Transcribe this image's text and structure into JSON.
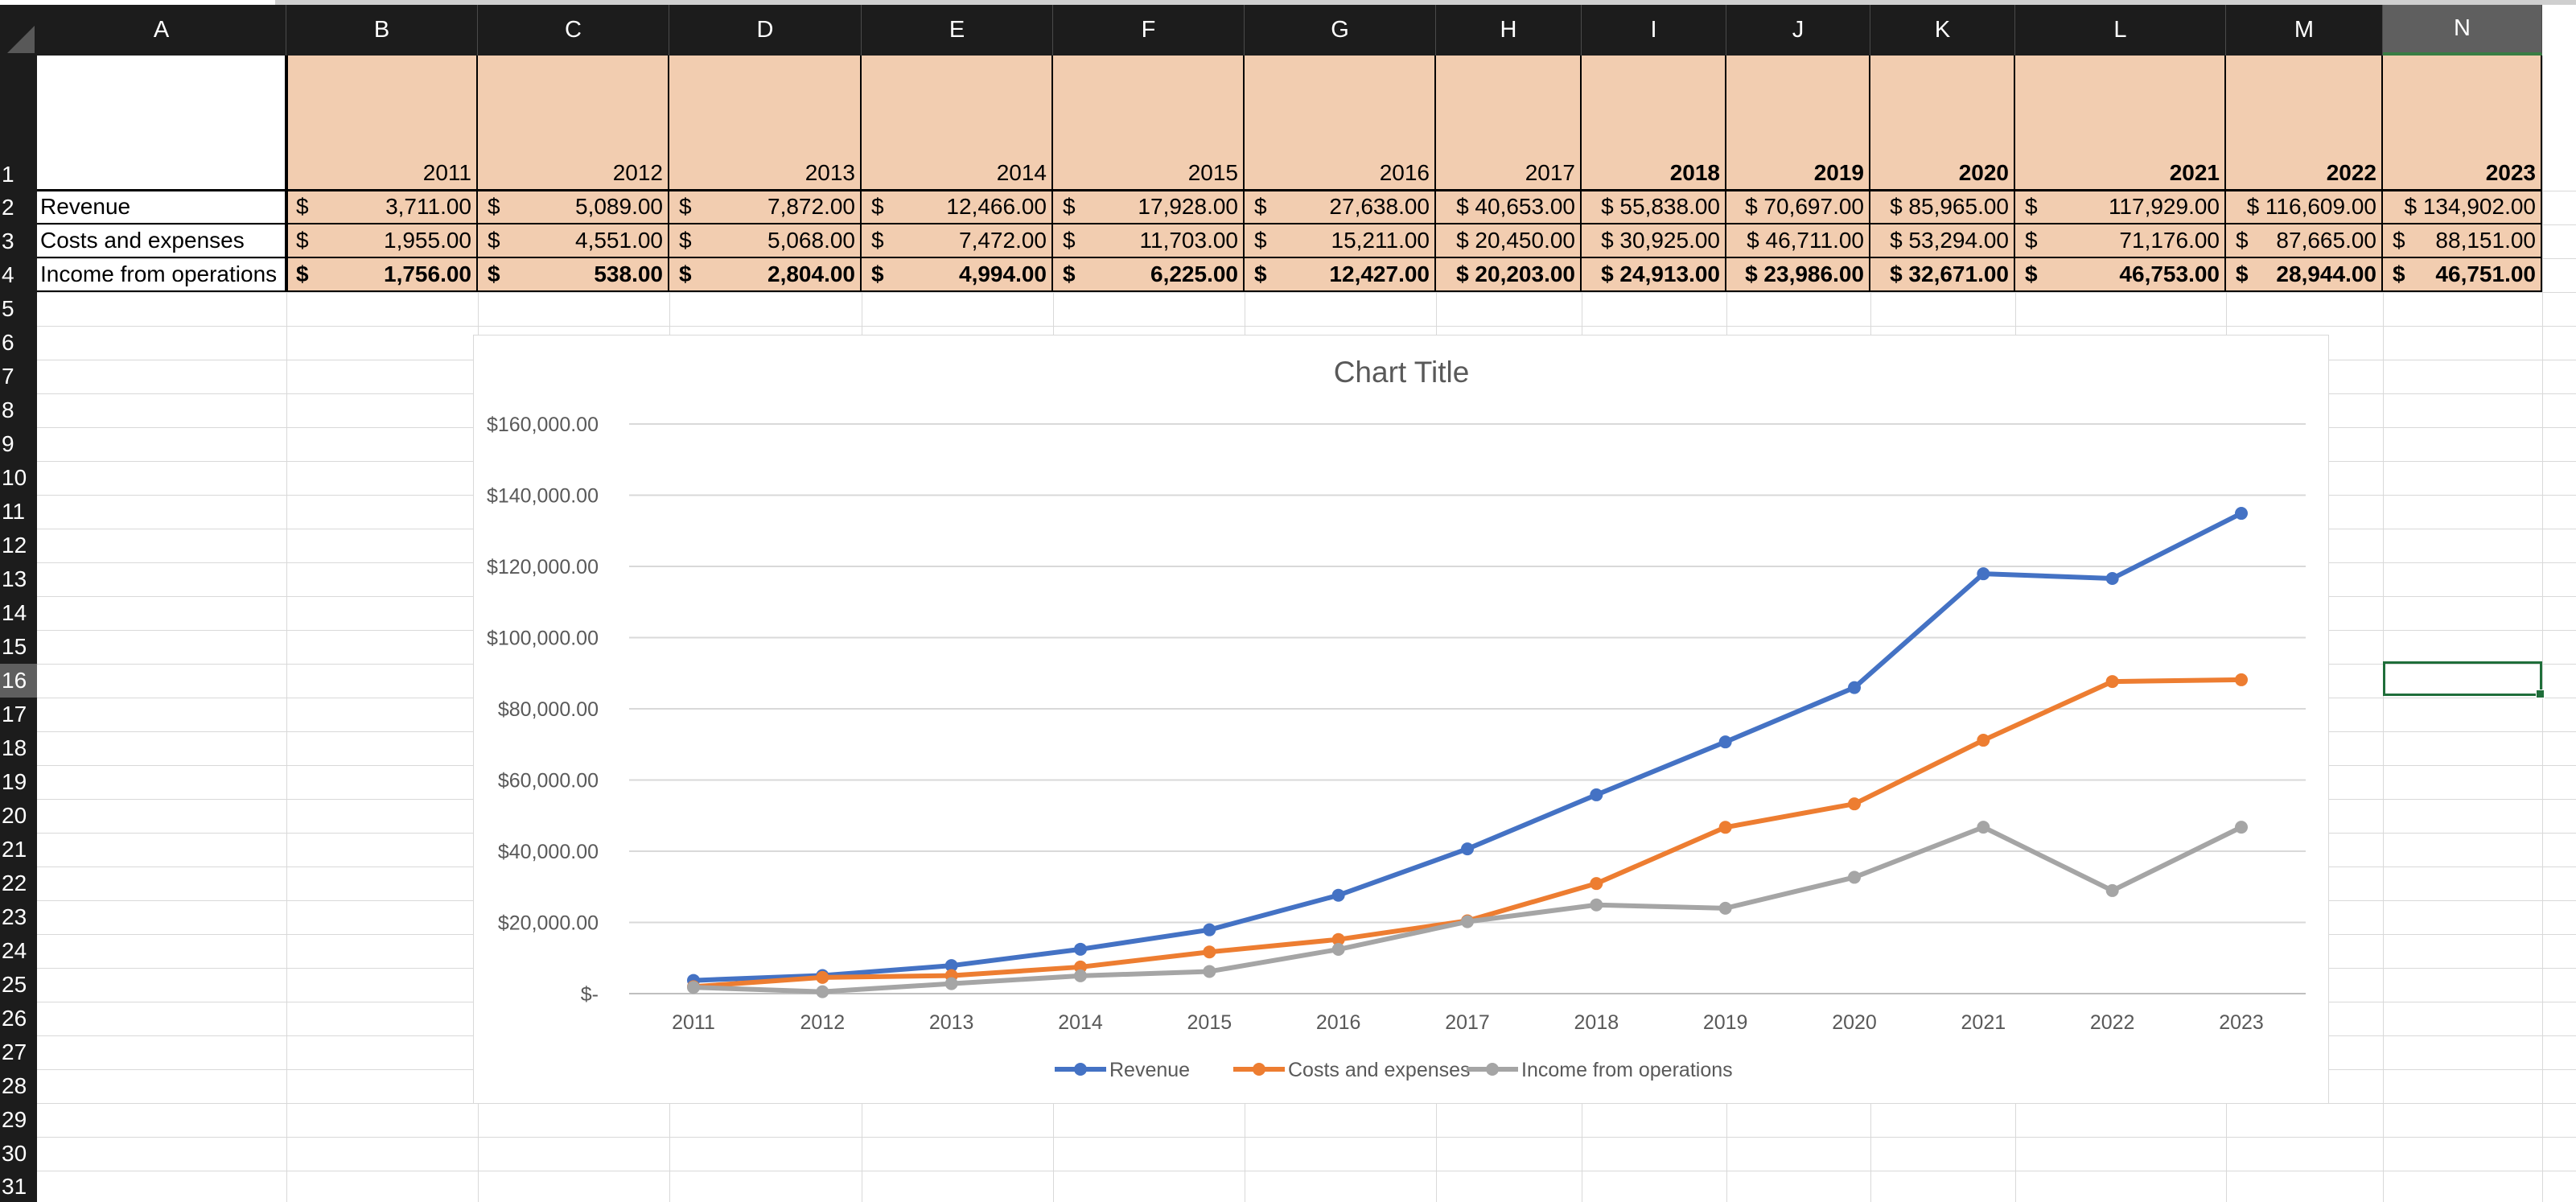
{
  "columns": [
    "A",
    "B",
    "C",
    "D",
    "E",
    "F",
    "G",
    "H",
    "I",
    "J",
    "K",
    "L",
    "M",
    "N"
  ],
  "selected_column": "N",
  "rows": [
    "1",
    "2",
    "3",
    "4",
    "5",
    "6",
    "7",
    "8",
    "9",
    "10",
    "11",
    "12",
    "13",
    "14",
    "15",
    "16",
    "17",
    "18",
    "19",
    "20",
    "21",
    "22",
    "23",
    "24",
    "25",
    "26",
    "27",
    "28",
    "29",
    "30",
    "31"
  ],
  "selected_row": "16",
  "table": {
    "years": [
      "2011",
      "2012",
      "2013",
      "2014",
      "2015",
      "2016",
      "2017",
      "2018",
      "2019",
      "2020",
      "2021",
      "2022",
      "2023"
    ],
    "rows": [
      {
        "label": "Revenue",
        "bold": false,
        "cells": [
          {
            "sym": "$",
            "v": "3,711.00"
          },
          {
            "sym": "$",
            "v": "5,089.00"
          },
          {
            "sym": "$",
            "v": "7,872.00"
          },
          {
            "sym": "$",
            "v": "12,466.00"
          },
          {
            "sym": "$",
            "v": "17,928.00"
          },
          {
            "sym": "$",
            "v": "27,638.00"
          },
          {
            "sym": "",
            "v": "$ 40,653.00"
          },
          {
            "sym": "",
            "v": "$ 55,838.00"
          },
          {
            "sym": "",
            "v": "$ 70,697.00"
          },
          {
            "sym": "",
            "v": "$ 85,965.00"
          },
          {
            "sym": "$",
            "v": "117,929.00"
          },
          {
            "sym": "",
            "v": "$ 116,609.00"
          },
          {
            "sym": "",
            "v": "$ 134,902.00"
          }
        ]
      },
      {
        "label": "Costs and expenses",
        "bold": false,
        "cells": [
          {
            "sym": "$",
            "v": "1,955.00"
          },
          {
            "sym": "$",
            "v": "4,551.00"
          },
          {
            "sym": "$",
            "v": "5,068.00"
          },
          {
            "sym": "$",
            "v": "7,472.00"
          },
          {
            "sym": "$",
            "v": "11,703.00"
          },
          {
            "sym": "$",
            "v": "15,211.00"
          },
          {
            "sym": "",
            "v": "$ 20,450.00"
          },
          {
            "sym": "",
            "v": "$ 30,925.00"
          },
          {
            "sym": "",
            "v": "$ 46,711.00"
          },
          {
            "sym": "",
            "v": "$ 53,294.00"
          },
          {
            "sym": "$",
            "v": "71,176.00"
          },
          {
            "sym": "$",
            "v": "87,665.00"
          },
          {
            "sym": "$",
            "v": "88,151.00"
          }
        ]
      },
      {
        "label": "Income  from operations",
        "bold": true,
        "cells": [
          {
            "sym": "$",
            "v": "1,756.00"
          },
          {
            "sym": "$",
            "v": "538.00"
          },
          {
            "sym": "$",
            "v": "2,804.00"
          },
          {
            "sym": "$",
            "v": "4,994.00"
          },
          {
            "sym": "$",
            "v": "6,225.00"
          },
          {
            "sym": "$",
            "v": "12,427.00"
          },
          {
            "sym": "",
            "v": "$ 20,203.00"
          },
          {
            "sym": "",
            "v": "$ 24,913.00"
          },
          {
            "sym": "",
            "v": "$ 23,986.00"
          },
          {
            "sym": "",
            "v": "$ 32,671.00"
          },
          {
            "sym": "$",
            "v": "46,753.00"
          },
          {
            "sym": "$",
            "v": "28,944.00"
          },
          {
            "sym": "$",
            "v": "46,751.00"
          }
        ]
      }
    ]
  },
  "chart_data": {
    "type": "line",
    "title": "Chart Title",
    "categories": [
      "2011",
      "2012",
      "2013",
      "2014",
      "2015",
      "2016",
      "2017",
      "2018",
      "2019",
      "2020",
      "2021",
      "2022",
      "2023"
    ],
    "series": [
      {
        "name": "Revenue",
        "color": "#4472c4",
        "values": [
          3711,
          5089,
          7872,
          12466,
          17928,
          27638,
          40653,
          55838,
          70697,
          85965,
          117929,
          116609,
          134902
        ]
      },
      {
        "name": "Costs and expenses",
        "color": "#ed7d31",
        "values": [
          1955,
          4551,
          5068,
          7472,
          11703,
          15211,
          20450,
          30925,
          46711,
          53294,
          71176,
          87665,
          88151
        ]
      },
      {
        "name": "Income  from operations",
        "color": "#a5a5a5",
        "values": [
          1756,
          538,
          2804,
          4994,
          6225,
          12427,
          20203,
          24913,
          23986,
          32671,
          46753,
          28944,
          46751
        ]
      }
    ],
    "ylim": [
      0,
      160000
    ],
    "yticks": [
      0,
      20000,
      40000,
      60000,
      80000,
      100000,
      120000,
      140000,
      160000
    ],
    "ytick_labels": [
      "$-",
      "$20,000.00",
      "$40,000.00",
      "$60,000.00",
      "$80,000.00",
      "$100,000.00",
      "$120,000.00",
      "$140,000.00",
      "$160,000.00"
    ],
    "grid": true,
    "legend": "bottom"
  }
}
